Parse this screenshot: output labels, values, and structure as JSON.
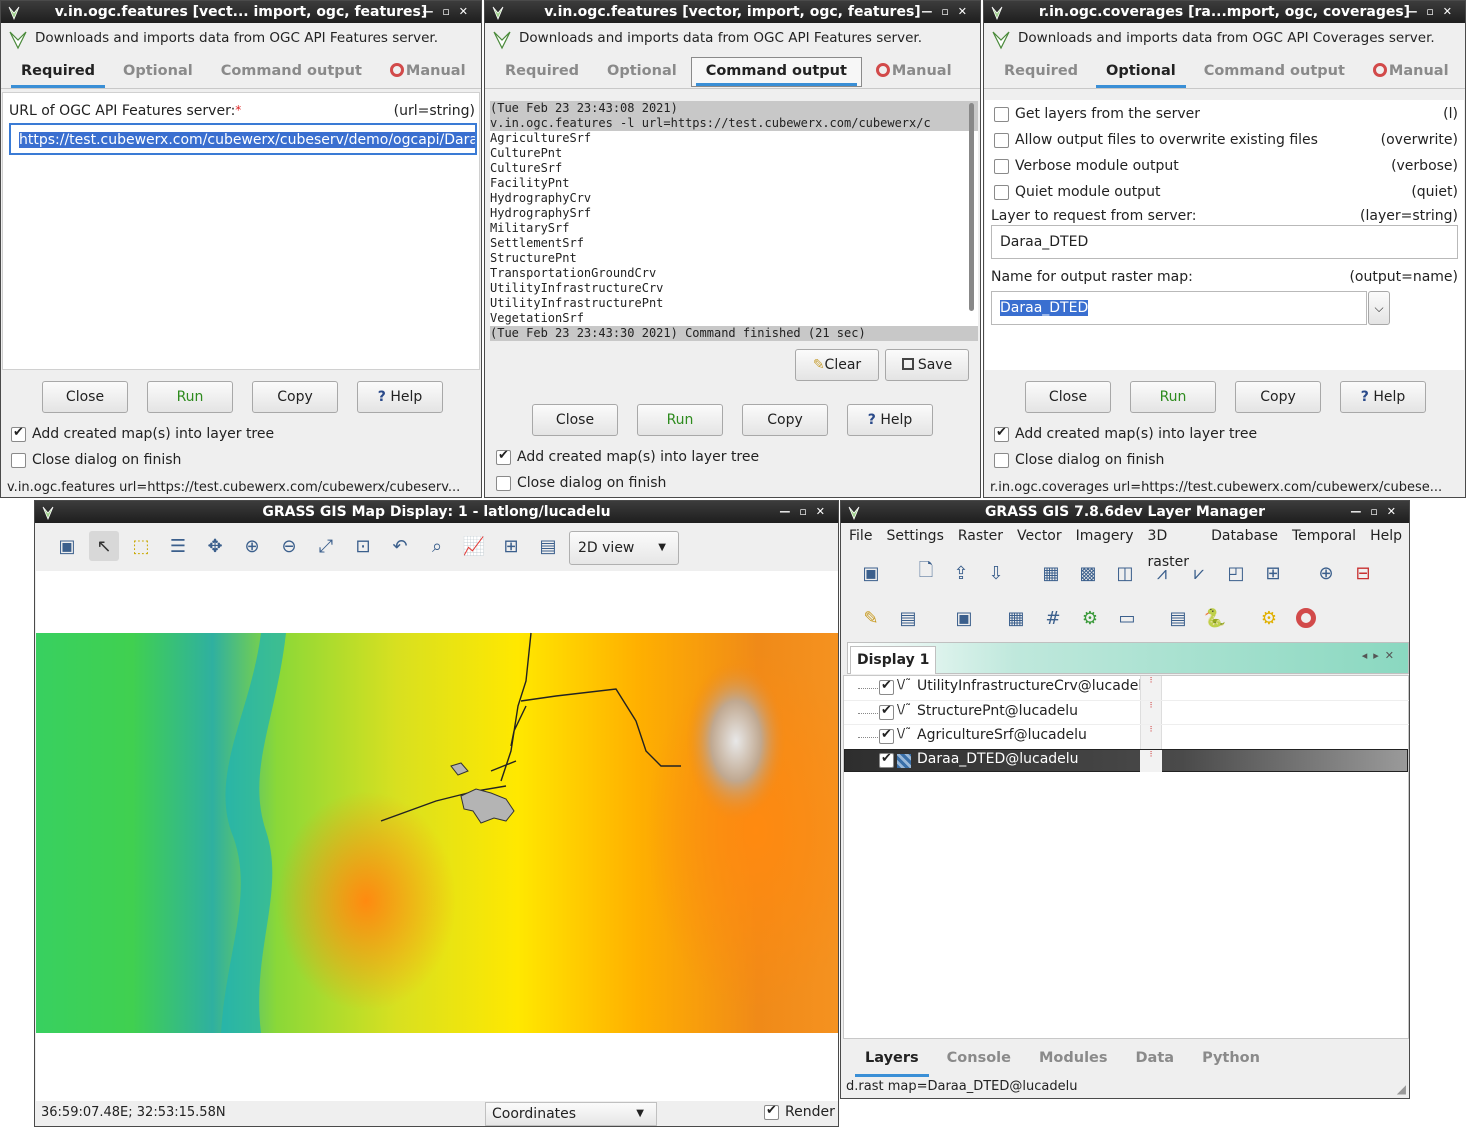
{
  "win1": {
    "title": "v.in.ogc.features [vect... import, ogc, features]",
    "description": "Downloads and imports data from OGC API Features server.",
    "tabs": [
      "Required",
      "Optional",
      "Command output",
      "Manual"
    ],
    "url_label": "URL of OGC API Features server:",
    "url_key": "(url=string)",
    "url_value": "https://test.cubewerx.com/cubewerx/cubeserv/demo/ogcapi/Daraa",
    "buttons": {
      "close": "Close",
      "run": "Run",
      "copy": "Copy",
      "help": "Help"
    },
    "add_map": "Add created map(s) into layer tree",
    "close_finish": "Close dialog on finish",
    "status": "v.in.ogc.features url=https://test.cubewerx.com/cubewerx/cubeserv..."
  },
  "win2": {
    "title": "v.in.ogc.features [vector, import, ogc, features]",
    "description": "Downloads and imports data from OGC API Features server.",
    "tabs": [
      "Required",
      "Optional",
      "Command output",
      "Manual"
    ],
    "output_lines": [
      "(Tue Feb 23 23:43:08 2021)",
      "v.in.ogc.features -l url=https://test.cubewerx.com/cubewerx/c",
      "AgricultureSrf",
      "CulturePnt",
      "CultureSrf",
      "FacilityPnt",
      "HydrographyCrv",
      "HydrographySrf",
      "MilitarySrf",
      "SettlementSrf",
      "StructurePnt",
      "TransportationGroundCrv",
      "UtilityInfrastructureCrv",
      "UtilityInfrastructurePnt",
      "VegetationSrf",
      "(Tue Feb 23 23:43:30 2021) Command finished (21 sec)"
    ],
    "clear": "Clear",
    "save": "Save",
    "buttons": {
      "close": "Close",
      "run": "Run",
      "copy": "Copy",
      "help": "Help"
    },
    "add_map": "Add created map(s) into layer tree",
    "close_finish": "Close dialog on finish"
  },
  "win3": {
    "title": "r.in.ogc.coverages [ra...mport, ogc, coverages]",
    "description": "Downloads and imports data from OGC API Coverages server.",
    "tabs": [
      "Required",
      "Optional",
      "Command output",
      "Manual"
    ],
    "options": [
      {
        "label": "Get layers from the server",
        "key": "(l)"
      },
      {
        "label": "Allow output files to overwrite existing files",
        "key": "(overwrite)"
      },
      {
        "label": "Verbose module output",
        "key": "(verbose)"
      },
      {
        "label": "Quiet module output",
        "key": "(quiet)"
      }
    ],
    "layer_label": "Layer to request from server:",
    "layer_key": "(layer=string)",
    "layer_value": "Daraa_DTED",
    "output_label": "Name for output raster map:",
    "output_key": "(output=name)",
    "output_value": "Daraa_DTED",
    "buttons": {
      "close": "Close",
      "run": "Run",
      "copy": "Copy",
      "help": "Help"
    },
    "add_map": "Add created map(s) into layer tree",
    "close_finish": "Close dialog on finish",
    "status": "r.in.ogc.coverages url=https://test.cubewerx.com/cubewerx/cubese..."
  },
  "map": {
    "title": "GRASS GIS Map Display: 1 - latlong/lucadelu",
    "view_mode": "2D view",
    "coords": "36:59:07.48E; 32:53:15.58N",
    "coords_mode": "Coordinates",
    "render": "Render"
  },
  "lm": {
    "title": "GRASS GIS 7.8.6dev Layer Manager",
    "menu": [
      "File",
      "Settings",
      "Raster",
      "Vector",
      "Imagery",
      "3D raster",
      "Database",
      "Temporal",
      "Help"
    ],
    "display_tab": "Display 1",
    "layers": [
      {
        "name": "UtilityInfrastructureCrv@lucadelu",
        "type": "vector"
      },
      {
        "name": "StructurePnt@lucadelu",
        "type": "vector"
      },
      {
        "name": "AgricultureSrf@lucadelu",
        "type": "vector"
      },
      {
        "name": "Daraa_DTED@lucadelu",
        "type": "raster"
      }
    ],
    "bottom_tabs": [
      "Layers",
      "Console",
      "Modules",
      "Data",
      "Python"
    ],
    "status": "d.rast map=Daraa_DTED@lucadelu"
  }
}
